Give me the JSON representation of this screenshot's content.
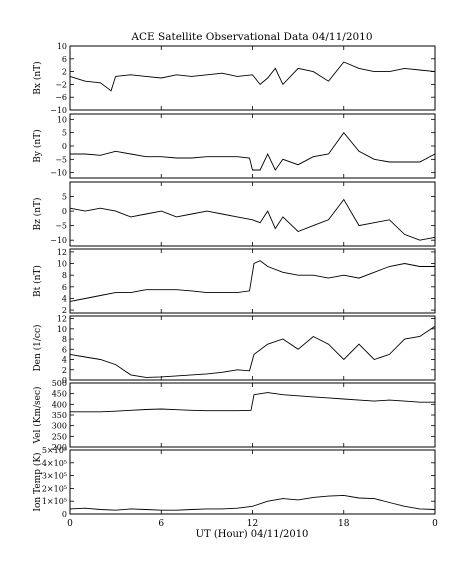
{
  "chart_data": {
    "type": "line",
    "title": "ACE Satellite Observational Data   04/11/2010",
    "xlabel": "UT (Hour)   04/11/2010",
    "x_ticks": [
      "0",
      "6",
      "12",
      "18",
      "0"
    ],
    "x_tick_values": [
      0,
      6,
      12,
      18,
      24
    ],
    "xlim": [
      0,
      24
    ],
    "panels": [
      {
        "name": "Bx",
        "ylabel": "Bx (nT)",
        "ylim": [
          -10,
          10
        ],
        "y_ticks": [
          {
            "v": 10,
            "t": "10"
          },
          {
            "v": 6,
            "t": "6"
          },
          {
            "v": 2,
            "t": "2"
          },
          {
            "v": -2,
            "t": "−2"
          },
          {
            "v": -6,
            "t": "−6"
          },
          {
            "v": -10,
            "t": "−10"
          }
        ],
        "x": [
          0,
          1,
          2,
          2.7,
          3,
          4,
          5,
          6,
          7,
          8,
          9,
          10,
          11,
          12,
          12.5,
          13,
          13.5,
          14,
          15,
          16,
          17,
          18,
          19,
          20,
          21,
          22,
          23,
          24
        ],
        "values": [
          0.5,
          -1,
          -1.5,
          -4,
          0.5,
          1,
          0.5,
          0,
          1,
          0.5,
          1,
          1.5,
          0.5,
          1,
          -2,
          0,
          3,
          -2,
          3,
          2,
          -1,
          5,
          3,
          2,
          2,
          3,
          2.5,
          2
        ]
      },
      {
        "name": "By",
        "ylabel": "By (nT)",
        "ylim": [
          -12,
          12
        ],
        "y_ticks": [
          {
            "v": 10,
            "t": "10"
          },
          {
            "v": 5,
            "t": "5"
          },
          {
            "v": 0,
            "t": "0"
          },
          {
            "v": -5,
            "t": "−5"
          },
          {
            "v": -10,
            "t": "−10"
          }
        ],
        "x": [
          0,
          1,
          2,
          3,
          4,
          5,
          6,
          7,
          8,
          9,
          10,
          11,
          11.8,
          12,
          12.5,
          13,
          13.5,
          14,
          15,
          16,
          17,
          18,
          19,
          20,
          21,
          22,
          23,
          24
        ],
        "values": [
          -3,
          -3,
          -3.5,
          -2,
          -3,
          -4,
          -4,
          -4.5,
          -4.5,
          -4,
          -4,
          -4,
          -4.5,
          -9,
          -9,
          -3,
          -9,
          -5,
          -7,
          -4,
          -3,
          5,
          -2,
          -5,
          -6,
          -6,
          -6,
          -3
        ]
      },
      {
        "name": "Bz",
        "ylabel": "Bz (nT)",
        "ylim": [
          -12,
          10
        ],
        "y_ticks": [
          {
            "v": 5,
            "t": "5"
          },
          {
            "v": 0,
            "t": "0"
          },
          {
            "v": -5,
            "t": "−5"
          },
          {
            "v": -10,
            "t": "−10"
          }
        ],
        "x": [
          0,
          1,
          2,
          3,
          4,
          5,
          6,
          7,
          8,
          9,
          10,
          11,
          12,
          12.5,
          13,
          13.5,
          14,
          15,
          16,
          17,
          18,
          19,
          20,
          21,
          22,
          23,
          24
        ],
        "values": [
          1,
          0,
          1,
          0,
          -2,
          -1,
          0,
          -2,
          -1,
          0,
          -1,
          -2,
          -3,
          -4,
          0,
          -6,
          -2,
          -7,
          -5,
          -3,
          4,
          -5,
          -4,
          -3,
          -8,
          -10,
          -9
        ]
      },
      {
        "name": "Bt",
        "ylabel": "Bt (nT)",
        "ylim": [
          1.5,
          12.5
        ],
        "y_ticks": [
          {
            "v": 12,
            "t": "12"
          },
          {
            "v": 10,
            "t": "10"
          },
          {
            "v": 8,
            "t": "8"
          },
          {
            "v": 6,
            "t": "6"
          },
          {
            "v": 4,
            "t": "4"
          },
          {
            "v": 2,
            "t": "2"
          }
        ],
        "x": [
          0,
          1,
          2,
          3,
          4,
          5,
          6,
          7,
          8,
          9,
          10,
          11,
          11.8,
          12.1,
          12.5,
          13,
          14,
          15,
          16,
          17,
          18,
          19,
          20,
          21,
          22,
          23,
          24
        ],
        "values": [
          3.5,
          4,
          4.5,
          5,
          5,
          5.5,
          5.5,
          5.5,
          5.3,
          5,
          5,
          5,
          5.3,
          10,
          10.5,
          9.5,
          8.5,
          8,
          8,
          7.5,
          8,
          7.5,
          8.5,
          9.5,
          10,
          9.5,
          9.5
        ]
      },
      {
        "name": "Den",
        "ylabel": "Den (1/cc)",
        "ylim": [
          0,
          12.5
        ],
        "y_ticks": [
          {
            "v": 12,
            "t": "12"
          },
          {
            "v": 10,
            "t": "10"
          },
          {
            "v": 8,
            "t": "8"
          },
          {
            "v": 6,
            "t": "6"
          },
          {
            "v": 4,
            "t": "4"
          },
          {
            "v": 2,
            "t": "2"
          },
          {
            "v": 0,
            "t": "0"
          }
        ],
        "x": [
          0,
          1,
          2,
          3,
          3.5,
          4,
          5,
          6,
          7,
          8,
          9,
          10,
          11,
          11.8,
          12.1,
          13,
          14,
          15,
          16,
          17,
          18,
          19,
          20,
          21,
          22,
          23,
          24
        ],
        "values": [
          5,
          4.5,
          4,
          3,
          2,
          1,
          0.5,
          0.6,
          0.8,
          1,
          1.2,
          1.5,
          2,
          1.8,
          5,
          7,
          8,
          6,
          8.5,
          7,
          4,
          7,
          4,
          5,
          8,
          8.5,
          10.5
        ]
      },
      {
        "name": "Vel",
        "ylabel": "Vel (Km/sec)",
        "ylim": [
          200,
          500
        ],
        "y_ticks": [
          {
            "v": 500,
            "t": "500"
          },
          {
            "v": 450,
            "t": "450"
          },
          {
            "v": 400,
            "t": "400"
          },
          {
            "v": 350,
            "t": "350"
          },
          {
            "v": 300,
            "t": "300"
          },
          {
            "v": 250,
            "t": "250"
          },
          {
            "v": 200,
            "t": "200"
          }
        ],
        "x": [
          0,
          1,
          2,
          3,
          4,
          5,
          6,
          7,
          8,
          9,
          10,
          11,
          11.9,
          12.1,
          13,
          14,
          15,
          16,
          17,
          18,
          19,
          20,
          21,
          22,
          23,
          24
        ],
        "values": [
          365,
          365,
          365,
          368,
          372,
          376,
          378,
          375,
          372,
          370,
          370,
          370,
          372,
          445,
          455,
          445,
          440,
          435,
          430,
          425,
          420,
          415,
          420,
          415,
          410,
          410
        ]
      },
      {
        "name": "Ion Temp",
        "ylabel": "Ion Temp (K)",
        "ylim": [
          0,
          500000
        ],
        "y_ticks": [
          {
            "v": 500000,
            "t": "5×10⁵"
          },
          {
            "v": 400000,
            "t": "4×10⁵"
          },
          {
            "v": 300000,
            "t": "3×10⁵"
          },
          {
            "v": 200000,
            "t": "2×10⁵"
          },
          {
            "v": 100000,
            "t": "1×10⁵"
          },
          {
            "v": 0,
            "t": "0"
          }
        ],
        "x": [
          0,
          1,
          2,
          3,
          4,
          5,
          6,
          7,
          8,
          9,
          10,
          11,
          12,
          13,
          14,
          15,
          16,
          17,
          18,
          19,
          20,
          21,
          22,
          23,
          24
        ],
        "values": [
          40000,
          45000,
          35000,
          30000,
          40000,
          35000,
          30000,
          30000,
          35000,
          40000,
          40000,
          45000,
          60000,
          100000,
          120000,
          110000,
          130000,
          140000,
          145000,
          125000,
          120000,
          90000,
          60000,
          40000,
          35000
        ]
      }
    ]
  }
}
